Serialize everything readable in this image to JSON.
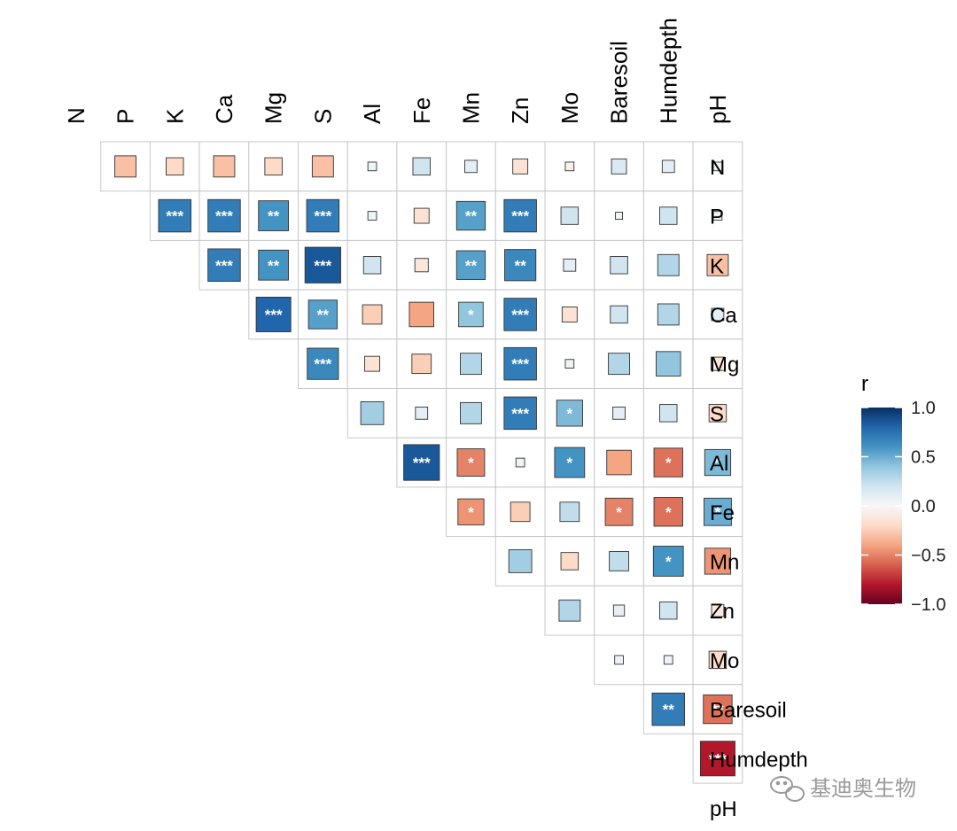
{
  "chart_data": {
    "type": "heatmap",
    "variables": [
      "N",
      "P",
      "K",
      "Ca",
      "Mg",
      "S",
      "Al",
      "Fe",
      "Mn",
      "Zn",
      "Mo",
      "Baresoil",
      "Humdepth",
      "pH"
    ],
    "correlations": [
      [
        1.0,
        -0.3,
        -0.2,
        -0.3,
        -0.2,
        -0.3,
        0.05,
        0.2,
        0.1,
        -0.15,
        -0.05,
        0.15,
        0.1,
        0.05
      ],
      [
        -0.3,
        1.0,
        0.7,
        0.7,
        0.6,
        0.7,
        0.05,
        -0.15,
        0.55,
        0.7,
        0.2,
        0.03,
        0.2,
        0.05
      ],
      [
        -0.2,
        0.7,
        1.0,
        0.7,
        0.6,
        0.85,
        0.2,
        -0.12,
        0.55,
        0.65,
        0.1,
        0.2,
        0.3,
        -0.3
      ],
      [
        -0.3,
        0.7,
        0.7,
        1.0,
        0.8,
        0.55,
        -0.25,
        -0.4,
        0.4,
        0.7,
        -0.15,
        0.2,
        0.3,
        0.1
      ],
      [
        -0.2,
        0.6,
        0.6,
        0.8,
        1.0,
        0.65,
        -0.15,
        -0.25,
        0.3,
        0.7,
        0.05,
        0.3,
        0.4,
        -0.12
      ],
      [
        -0.3,
        0.7,
        0.85,
        0.55,
        0.65,
        1.0,
        0.35,
        0.1,
        0.3,
        0.7,
        0.45,
        0.1,
        0.2,
        -0.2
      ],
      [
        0.05,
        0.05,
        0.2,
        -0.25,
        -0.15,
        0.35,
        1.0,
        0.85,
        -0.5,
        0.05,
        0.6,
        -0.4,
        -0.55,
        0.45
      ],
      [
        0.2,
        -0.15,
        -0.12,
        -0.4,
        -0.25,
        0.1,
        0.85,
        1.0,
        -0.45,
        -0.25,
        0.25,
        -0.5,
        -0.55,
        0.5
      ],
      [
        0.1,
        0.55,
        0.55,
        0.4,
        0.3,
        0.3,
        -0.5,
        -0.45,
        1.0,
        0.35,
        -0.2,
        0.25,
        0.6,
        -0.45
      ],
      [
        -0.15,
        0.7,
        0.65,
        0.7,
        0.7,
        0.7,
        0.05,
        -0.25,
        0.35,
        1.0,
        0.3,
        0.08,
        0.2,
        -0.1
      ],
      [
        -0.05,
        0.2,
        0.1,
        -0.15,
        0.05,
        0.45,
        0.6,
        0.25,
        -0.2,
        0.3,
        1.0,
        0.05,
        0.05,
        -0.2
      ],
      [
        0.15,
        0.03,
        0.2,
        0.2,
        0.3,
        0.1,
        -0.4,
        -0.5,
        0.25,
        0.08,
        0.05,
        1.0,
        0.7,
        -0.55
      ],
      [
        0.1,
        0.2,
        0.3,
        0.3,
        0.4,
        0.2,
        -0.55,
        -0.55,
        0.6,
        0.2,
        0.05,
        0.7,
        1.0,
        -0.8
      ],
      [
        0.05,
        0.05,
        -0.3,
        0.1,
        -0.12,
        -0.2,
        0.45,
        0.5,
        -0.45,
        -0.1,
        -0.2,
        -0.55,
        -0.8,
        1.0
      ]
    ],
    "significance": [
      [
        "",
        "",
        "",
        "",
        "",
        "",
        "",
        "",
        "",
        "",
        "",
        "",
        "",
        ""
      ],
      [
        "",
        "",
        "***",
        "***",
        "**",
        "***",
        "",
        "",
        "**",
        "***",
        "",
        "",
        "",
        ""
      ],
      [
        "",
        "***",
        "",
        "***",
        "**",
        "***",
        "",
        "",
        "**",
        "**",
        "",
        "",
        "",
        ""
      ],
      [
        "",
        "***",
        "***",
        "",
        "***",
        "**",
        "",
        "",
        "*",
        "***",
        "",
        "",
        "",
        ""
      ],
      [
        "",
        "**",
        "**",
        "***",
        "",
        "***",
        "",
        "",
        "",
        "***",
        "",
        "",
        "",
        ""
      ],
      [
        "",
        "***",
        "***",
        "**",
        "***",
        "",
        "",
        "",
        "",
        "***",
        "*",
        "",
        "",
        ""
      ],
      [
        "",
        "",
        "",
        "",
        "",
        "",
        "",
        "***",
        "*",
        "",
        "*",
        "",
        "*",
        "*"
      ],
      [
        "",
        "",
        "",
        "",
        "",
        "",
        "***",
        "",
        "*",
        "",
        "",
        "*",
        "*",
        "*"
      ],
      [
        "",
        "**",
        "**",
        "*",
        "",
        "",
        "*",
        "*",
        "",
        "",
        "",
        "",
        "*",
        ""
      ],
      [
        "",
        "***",
        "**",
        "***",
        "***",
        "***",
        "",
        "",
        "",
        "",
        "",
        "",
        "",
        ""
      ],
      [
        "",
        "",
        "",
        "",
        "",
        "*",
        "*",
        "",
        "",
        "",
        "",
        "",
        "",
        ""
      ],
      [
        "",
        "",
        "",
        "",
        "",
        "",
        "",
        "*",
        "",
        "",
        "",
        "",
        "**",
        "**"
      ],
      [
        "",
        "",
        "",
        "",
        "",
        "",
        "*",
        "*",
        "*",
        "",
        "",
        "**",
        "",
        "***"
      ],
      [
        "",
        "",
        "",
        "",
        "",
        "",
        "*",
        "*",
        "",
        "",
        "",
        "**",
        "***",
        ""
      ]
    ],
    "legend": {
      "title": "r",
      "ticks": [
        1.0,
        0.5,
        0.0,
        -0.5,
        -1.0
      ],
      "tick_labels": [
        "1.0",
        "0.5",
        "0.0",
        "−0.5",
        "−1.0"
      ],
      "range": [
        -1.0,
        1.0
      ],
      "placement": "right"
    },
    "colors": {
      "low": "#67001f",
      "mid": "#f7f7f7",
      "high": "#053061"
    }
  },
  "watermark": {
    "text": "基迪奥生物",
    "icon": "wechat-logo-icon"
  }
}
